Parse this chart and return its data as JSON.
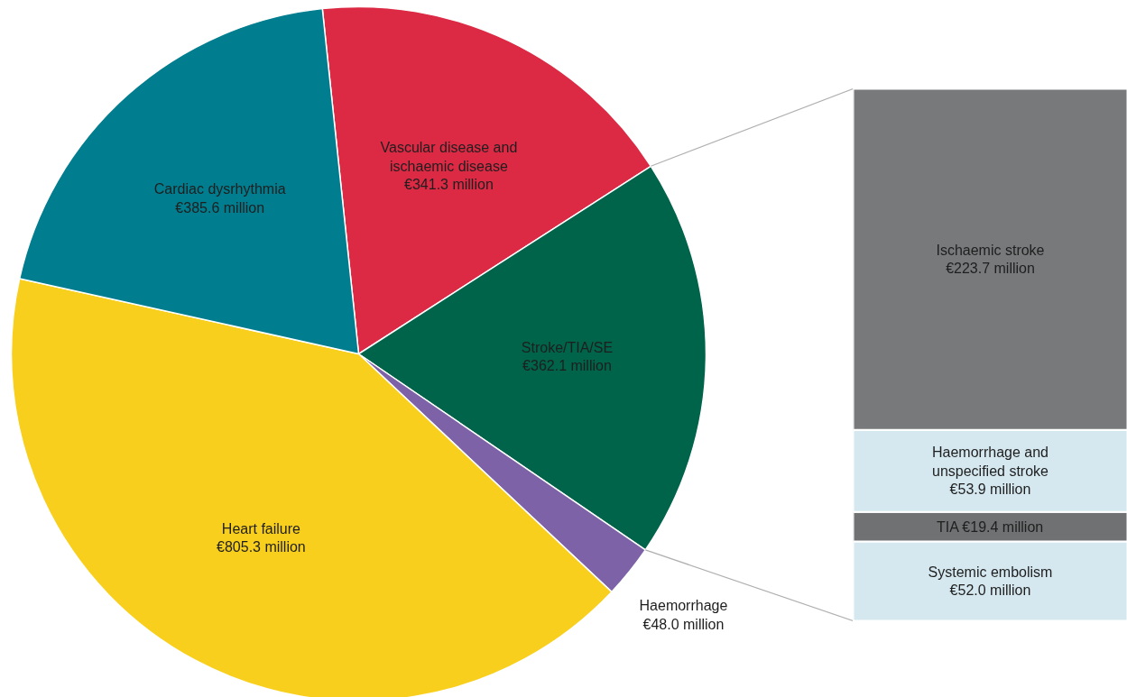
{
  "chart_data": [
    {
      "type": "pie",
      "categories": [
        "Vascular disease and ischaemic disease",
        "Stroke/TIA/SE",
        "Haemorrhage",
        "Heart failure",
        "Cardiac dysrhythmia"
      ],
      "values": [
        341.3,
        362.1,
        48.0,
        805.3,
        385.6
      ],
      "colors": [
        "#dc2a45",
        "#00644a",
        "#7e62a8",
        "#f9cf1d",
        "#007e8f"
      ],
      "value_labels": [
        "€341.3 million",
        "€362.1 million",
        "€48.0 million",
        "€805.3 million",
        "€385.6 million"
      ]
    },
    {
      "type": "bar",
      "stacked": true,
      "categories": [
        null
      ],
      "tick_labels": false,
      "series": [
        {
          "name": "Systemic embolism",
          "color": "#d5e8ef",
          "values": [
            52.0
          ],
          "value_labels": [
            "€52.0 million"
          ]
        },
        {
          "name": "TIA",
          "color": "#6f7173",
          "values": [
            19.4
          ],
          "value_labels": [
            "€19.4 million"
          ]
        },
        {
          "name": "Haemorrhage and unspecified stroke",
          "color": "#d5e8ef",
          "values": [
            53.9
          ],
          "value_labels": [
            "€53.9 million"
          ]
        },
        {
          "name": "Ischaemic stroke",
          "color": "#77797b",
          "values": [
            223.7
          ],
          "value_labels": [
            "€223.7 million"
          ]
        }
      ]
    }
  ]
}
